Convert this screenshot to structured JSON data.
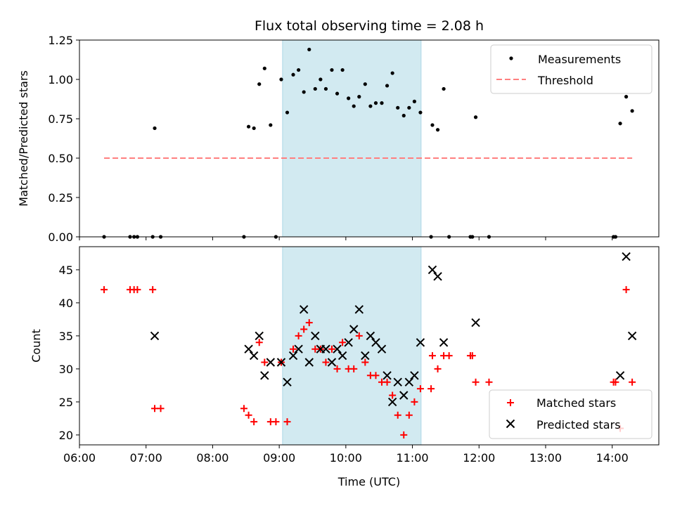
{
  "figure": {
    "title": "Flux total observing time = 2.08 h",
    "xlabel": "Time (UTC)"
  },
  "chart_data": [
    {
      "type": "scatter",
      "ylabel": "Matched/Predicted stars",
      "xlim": [
        6.0,
        14.7
      ],
      "ylim": [
        0.0,
        1.25
      ],
      "yticks": [
        "0.00",
        "0.25",
        "0.50",
        "0.75",
        "1.00",
        "1.25"
      ],
      "grid": false,
      "legend": "top-right",
      "shaded_span": [
        9.05,
        11.13
      ],
      "shade_color": "#add8e6",
      "threshold": {
        "name": "Threshold",
        "value": 0.5,
        "x_range": [
          6.37,
          14.3
        ],
        "color": "#ff7f7f"
      },
      "series": [
        {
          "name": "Measurements",
          "color": "#000000",
          "x": [
            6.37,
            6.76,
            6.82,
            6.87,
            7.1,
            7.13,
            7.22,
            8.47,
            8.54,
            8.62,
            8.7,
            8.78,
            8.87,
            8.95,
            9.03,
            9.12,
            9.21,
            9.29,
            9.37,
            9.45,
            9.54,
            9.62,
            9.7,
            9.79,
            9.87,
            9.95,
            10.04,
            10.12,
            10.2,
            10.29,
            10.37,
            10.45,
            10.54,
            10.62,
            10.7,
            10.78,
            10.87,
            10.95,
            11.03,
            11.12,
            11.28,
            11.3,
            11.38,
            11.47,
            11.55,
            11.87,
            11.9,
            11.95,
            12.15,
            14.02,
            14.05,
            14.12,
            14.21,
            14.3
          ],
          "y": [
            0.0,
            0.0,
            0.0,
            0.0,
            0.0,
            0.69,
            0.0,
            0.0,
            0.7,
            0.69,
            0.97,
            1.07,
            0.71,
            0.0,
            1.0,
            0.79,
            1.03,
            1.06,
            0.92,
            1.19,
            0.94,
            1.0,
            0.94,
            1.06,
            0.91,
            1.06,
            0.88,
            0.83,
            0.89,
            0.97,
            0.83,
            0.85,
            0.85,
            0.96,
            1.04,
            0.82,
            0.77,
            0.82,
            0.86,
            0.79,
            0.0,
            0.71,
            0.68,
            0.94,
            0.0,
            0.0,
            0.0,
            0.76,
            0.0,
            0.0,
            0.0,
            0.72,
            0.89,
            0.8
          ]
        }
      ]
    },
    {
      "type": "scatter",
      "ylabel": "Count",
      "xlim": [
        6.0,
        14.7
      ],
      "ylim": [
        18.5,
        48.5
      ],
      "yticks": [
        "20",
        "25",
        "30",
        "35",
        "40",
        "45"
      ],
      "xticks": [
        "06:00",
        "07:00",
        "08:00",
        "09:00",
        "10:00",
        "11:00",
        "12:00",
        "13:00",
        "14:00"
      ],
      "xtick_values": [
        6,
        7,
        8,
        9,
        10,
        11,
        12,
        13,
        14
      ],
      "grid": false,
      "legend": "bottom-right",
      "shaded_span": [
        9.05,
        11.13
      ],
      "series": [
        {
          "name": "Matched stars",
          "marker": "+",
          "color": "#ff0000",
          "x": [
            6.37,
            6.76,
            6.82,
            6.87,
            7.1,
            7.13,
            7.22,
            8.47,
            8.54,
            8.62,
            8.7,
            8.78,
            8.87,
            8.95,
            9.03,
            9.12,
            9.21,
            9.29,
            9.37,
            9.45,
            9.54,
            9.62,
            9.7,
            9.79,
            9.87,
            9.95,
            10.04,
            10.12,
            10.2,
            10.29,
            10.37,
            10.45,
            10.54,
            10.62,
            10.7,
            10.78,
            10.87,
            10.95,
            11.03,
            11.12,
            11.28,
            11.3,
            11.38,
            11.47,
            11.55,
            11.87,
            11.9,
            11.95,
            12.15,
            14.02,
            14.05,
            14.12,
            14.21,
            14.3
          ],
          "y": [
            42,
            42,
            42,
            42,
            42,
            24,
            24,
            24,
            23,
            22,
            34,
            31,
            22,
            22,
            31,
            22,
            33,
            35,
            36,
            37,
            33,
            33,
            31,
            33,
            30,
            34,
            30,
            30,
            35,
            31,
            29,
            29,
            28,
            28,
            26,
            23,
            20,
            23,
            25,
            27,
            27,
            32,
            30,
            32,
            32,
            32,
            32,
            28,
            28,
            28,
            28,
            21,
            42,
            28
          ]
        },
        {
          "name": "Predicted stars",
          "marker": "x",
          "color": "#000000",
          "x": [
            7.13,
            8.54,
            8.62,
            8.7,
            8.78,
            8.87,
            9.03,
            9.12,
            9.21,
            9.29,
            9.37,
            9.45,
            9.54,
            9.62,
            9.7,
            9.79,
            9.87,
            9.95,
            10.04,
            10.12,
            10.2,
            10.29,
            10.37,
            10.45,
            10.54,
            10.62,
            10.7,
            10.78,
            10.87,
            10.95,
            11.03,
            11.12,
            11.3,
            11.38,
            11.47,
            11.95,
            14.12,
            14.21,
            14.3
          ],
          "y": [
            35,
            33,
            32,
            35,
            29,
            31,
            31,
            28,
            32,
            33,
            39,
            31,
            35,
            33,
            33,
            31,
            33,
            32,
            34,
            36,
            39,
            32,
            35,
            34,
            33,
            29,
            25,
            28,
            26,
            28,
            29,
            34,
            45,
            44,
            34,
            37,
            29,
            47,
            35
          ]
        }
      ]
    }
  ]
}
